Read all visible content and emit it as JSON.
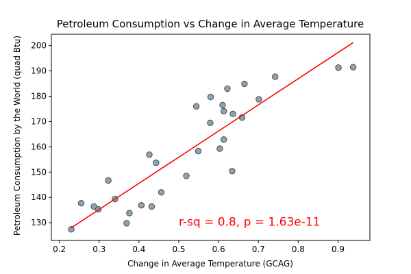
{
  "chart_data": {
    "type": "scatter",
    "title": "Petroleum Consumption vs Change in Average Temperature",
    "xlabel": "Change in Average Temperature (GCAG)",
    "ylabel": "Petroleum Consumption by the World (quad Btu)",
    "xlim": [
      0.18,
      0.98
    ],
    "ylim": [
      123,
      204.5
    ],
    "xticks": [
      0.2,
      0.3,
      0.4,
      0.5,
      0.6,
      0.7,
      0.8,
      0.9
    ],
    "xtick_labels": [
      "0.2",
      "0.3",
      "0.4",
      "0.5",
      "0.6",
      "0.7",
      "0.8",
      "0.9"
    ],
    "yticks": [
      130,
      140,
      150,
      160,
      170,
      180,
      190,
      200
    ],
    "ytick_labels": [
      "130",
      "140",
      "150",
      "160",
      "170",
      "180",
      "190",
      "200"
    ],
    "grid": false,
    "point_color": "#8aa4b6",
    "point_edge_color": "#4a4a4a",
    "line_color": "#ff0000",
    "points": [
      {
        "x": 0.23,
        "y": 127.4
      },
      {
        "x": 0.255,
        "y": 137.7
      },
      {
        "x": 0.287,
        "y": 136.4
      },
      {
        "x": 0.298,
        "y": 135.3
      },
      {
        "x": 0.323,
        "y": 146.7
      },
      {
        "x": 0.34,
        "y": 139.4
      },
      {
        "x": 0.369,
        "y": 129.8
      },
      {
        "x": 0.376,
        "y": 133.8
      },
      {
        "x": 0.406,
        "y": 136.9
      },
      {
        "x": 0.426,
        "y": 156.9
      },
      {
        "x": 0.432,
        "y": 136.4
      },
      {
        "x": 0.443,
        "y": 153.7
      },
      {
        "x": 0.456,
        "y": 142.0
      },
      {
        "x": 0.519,
        "y": 148.5
      },
      {
        "x": 0.544,
        "y": 176.0
      },
      {
        "x": 0.549,
        "y": 158.3
      },
      {
        "x": 0.579,
        "y": 169.5
      },
      {
        "x": 0.58,
        "y": 179.7
      },
      {
        "x": 0.603,
        "y": 159.3
      },
      {
        "x": 0.61,
        "y": 176.5
      },
      {
        "x": 0.613,
        "y": 174.1
      },
      {
        "x": 0.613,
        "y": 162.9
      },
      {
        "x": 0.622,
        "y": 183.0
      },
      {
        "x": 0.634,
        "y": 150.4
      },
      {
        "x": 0.636,
        "y": 173.0
      },
      {
        "x": 0.659,
        "y": 171.6
      },
      {
        "x": 0.665,
        "y": 184.9
      },
      {
        "x": 0.701,
        "y": 178.8
      },
      {
        "x": 0.742,
        "y": 187.7
      },
      {
        "x": 0.901,
        "y": 191.3
      },
      {
        "x": 0.938,
        "y": 191.5
      }
    ],
    "fit_line": {
      "x": [
        0.23,
        0.938
      ],
      "y": [
        128.0,
        201.2
      ]
    },
    "annotation": {
      "text": "r-sq = 0.8, p = 1.63e-11",
      "color": "#ff0000",
      "x": 0.5,
      "y": 130.5
    }
  }
}
